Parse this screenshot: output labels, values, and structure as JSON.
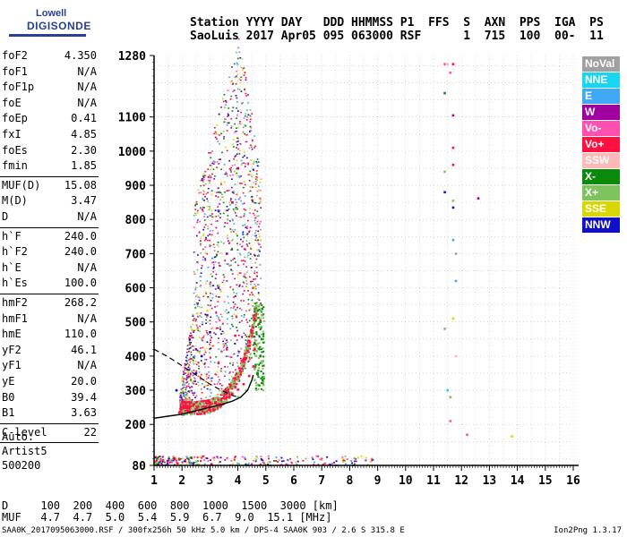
{
  "logo": {
    "line1": "Lowell",
    "line2": "DIGISONDE"
  },
  "header": {
    "line1": "Station YYYY DAY   DDD HHMMSS P1  FFS  S  AXN  PPS  IGA  PS",
    "line2": "SaoLuis 2017 Apr05 095 063000 RSF      1  715  100  00-  11"
  },
  "params": [
    {
      "name": "foF2",
      "value": "4.350"
    },
    {
      "name": "foF1",
      "value": "N/A"
    },
    {
      "name": "foF1p",
      "value": "N/A"
    },
    {
      "name": "foE",
      "value": "N/A"
    },
    {
      "name": "foEp",
      "value": "0.41"
    },
    {
      "name": "fxI",
      "value": "4.85"
    },
    {
      "name": "foEs",
      "value": "2.30"
    },
    {
      "name": "fmin",
      "value": "1.85"
    },
    {
      "name": "MUF(D)",
      "value": "15.08"
    },
    {
      "name": "M(D)",
      "value": "3.47"
    },
    {
      "name": "D",
      "value": "N/A"
    },
    {
      "name": "h`F",
      "value": "240.0"
    },
    {
      "name": "h`F2",
      "value": "240.0"
    },
    {
      "name": "h`E",
      "value": "N/A"
    },
    {
      "name": "h`Es",
      "value": "100.0"
    },
    {
      "name": "hmF2",
      "value": "268.2"
    },
    {
      "name": "hmF1",
      "value": "N/A"
    },
    {
      "name": "hmE",
      "value": "110.0"
    },
    {
      "name": "yF2",
      "value": "46.1"
    },
    {
      "name": "yF1",
      "value": "N/A"
    },
    {
      "name": "yE",
      "value": "20.0"
    },
    {
      "name": "B0",
      "value": "39.4"
    },
    {
      "name": "B1",
      "value": "3.63"
    },
    {
      "name": "C-level",
      "value": "22"
    }
  ],
  "auto": {
    "line1": "Auto:",
    "line2": "Artist5",
    "line3": "500200"
  },
  "legend": [
    {
      "label": "NoVal",
      "color": "#a0a0a0"
    },
    {
      "label": "NNE",
      "color": "#19d6f0"
    },
    {
      "label": "E",
      "color": "#3fa9f5"
    },
    {
      "label": "W",
      "color": "#a000a0"
    },
    {
      "label": "Vo-",
      "color": "#ff4fb0"
    },
    {
      "label": "Vo+",
      "color": "#ff1040"
    },
    {
      "label": "SSW",
      "color": "#ffb8b8"
    },
    {
      "label": "X-",
      "color": "#0a8a0a"
    },
    {
      "label": "X+",
      "color": "#7fc35f"
    },
    {
      "label": "SSE",
      "color": "#d8d800"
    },
    {
      "label": "NNW",
      "color": "#1010c8"
    }
  ],
  "bottom": {
    "line1": "D     100  200  400  600  800  1000  1500  3000 [km]",
    "line2": "MUF   4.7  4.7  5.0  5.4  5.9  6.7  9.0  15.1 [MHz]"
  },
  "footer": "SAA0K_2017095063000.RSF / 300fx256h 50 kHz 5.0 km / DPS-4 SAA0K 903 / 2.6 S 315.8 E",
  "version": "Ion2Png 1.3.17",
  "chart_data": {
    "type": "scatter",
    "xlabel": "",
    "ylabel": "",
    "xlim": [
      1,
      16
    ],
    "ylim": [
      80,
      1280
    ],
    "xticks": [
      1,
      2,
      3,
      4,
      5,
      6,
      7,
      8,
      9,
      10,
      11,
      12,
      13,
      14,
      15,
      16
    ],
    "yticks": [
      80,
      200,
      300,
      400,
      500,
      600,
      700,
      800,
      900,
      1000,
      1100,
      1280
    ],
    "grid": true,
    "legend_position": "right",
    "series": [
      {
        "name": "Vo+",
        "color": "#ff1040",
        "points": [
          [
            1.9,
            235
          ],
          [
            2.2,
            240
          ],
          [
            2.5,
            245
          ],
          [
            2.8,
            252
          ],
          [
            3.0,
            258
          ],
          [
            3.2,
            265
          ],
          [
            3.4,
            272
          ],
          [
            3.6,
            280
          ],
          [
            3.8,
            290
          ],
          [
            4.0,
            302
          ],
          [
            4.2,
            318
          ],
          [
            4.4,
            342
          ],
          [
            4.55,
            370
          ],
          [
            4.6,
            420
          ],
          [
            4.6,
            520
          ],
          [
            4.55,
            600
          ],
          [
            3.6,
            420
          ],
          [
            3.3,
            380
          ],
          [
            3.9,
            460
          ],
          [
            11.7,
            960
          ],
          [
            11.7,
            1010
          ],
          [
            11.6,
            280
          ],
          [
            11.7,
            1255
          ]
        ]
      },
      {
        "name": "X+",
        "color": "#7fc35f",
        "points": [
          [
            2.4,
            232
          ],
          [
            2.8,
            242
          ],
          [
            3.2,
            252
          ],
          [
            3.6,
            265
          ],
          [
            4.0,
            280
          ],
          [
            4.3,
            300
          ],
          [
            4.6,
            330
          ],
          [
            4.85,
            380
          ],
          [
            4.9,
            450
          ],
          [
            4.85,
            520
          ],
          [
            11.4,
            940
          ],
          [
            11.7,
            855
          ],
          [
            11.6,
            280
          ]
        ]
      },
      {
        "name": "X-",
        "color": "#0a8a0a",
        "points": [
          [
            4.7,
            350
          ],
          [
            4.8,
            400
          ],
          [
            4.85,
            450
          ],
          [
            4.8,
            500
          ],
          [
            11.4,
            1170
          ]
        ]
      },
      {
        "name": "W",
        "color": "#a000a0",
        "points": [
          [
            2.5,
            420
          ],
          [
            2.9,
            520
          ],
          [
            3.3,
            600
          ],
          [
            3.6,
            700
          ],
          [
            3.8,
            850
          ],
          [
            4.0,
            950
          ],
          [
            12.6,
            862
          ],
          [
            11.7,
            1105
          ]
        ]
      },
      {
        "name": "NNW",
        "color": "#1010c8",
        "points": [
          [
            2.5,
            350
          ],
          [
            2.7,
            400
          ],
          [
            3.0,
            470
          ],
          [
            1.8,
            300
          ],
          [
            11.4,
            880
          ],
          [
            11.7,
            835
          ]
        ]
      },
      {
        "name": "Vo-",
        "color": "#ff4fb0",
        "points": [
          [
            11.6,
            210
          ],
          [
            12.2,
            170
          ],
          [
            11.4,
            1255
          ],
          [
            11.6,
            1230
          ]
        ]
      },
      {
        "name": "E",
        "color": "#3fa9f5",
        "points": [
          [
            11.8,
            620
          ],
          [
            11.7,
            740
          ]
        ]
      },
      {
        "name": "SSE",
        "color": "#d8d800",
        "points": [
          [
            13.8,
            165
          ],
          [
            11.7,
            510
          ],
          [
            4.6,
            600
          ]
        ]
      },
      {
        "name": "NNE",
        "color": "#19d6f0",
        "points": [
          [
            11.5,
            300
          ]
        ]
      },
      {
        "name": "SSW",
        "color": "#ffb8b8",
        "points": [
          [
            11.8,
            400
          ],
          [
            11.5,
            1255
          ]
        ]
      },
      {
        "name": "NoVal",
        "color": "#a0a0a0",
        "points": [
          [
            11.8,
            700
          ],
          [
            11.4,
            480
          ]
        ]
      }
    ],
    "profile_solid": [
      [
        1.0,
        218
      ],
      [
        1.5,
        224
      ],
      [
        2.0,
        230
      ],
      [
        2.5,
        240
      ],
      [
        3.0,
        250
      ],
      [
        3.4,
        258
      ],
      [
        3.8,
        268
      ],
      [
        4.1,
        280
      ],
      [
        4.35,
        300
      ],
      [
        4.5,
        330
      ],
      [
        4.55,
        345
      ]
    ],
    "profile_dashed": [
      [
        1.0,
        420
      ],
      [
        1.5,
        398
      ],
      [
        2.0,
        372
      ],
      [
        2.5,
        345
      ],
      [
        3.0,
        318
      ],
      [
        3.4,
        300
      ],
      [
        3.8,
        285
      ],
      [
        4.1,
        278
      ]
    ],
    "sporadic_e": {
      "freq_range": [
        1.0,
        9.0
      ],
      "height_range": [
        82,
        110
      ]
    }
  }
}
